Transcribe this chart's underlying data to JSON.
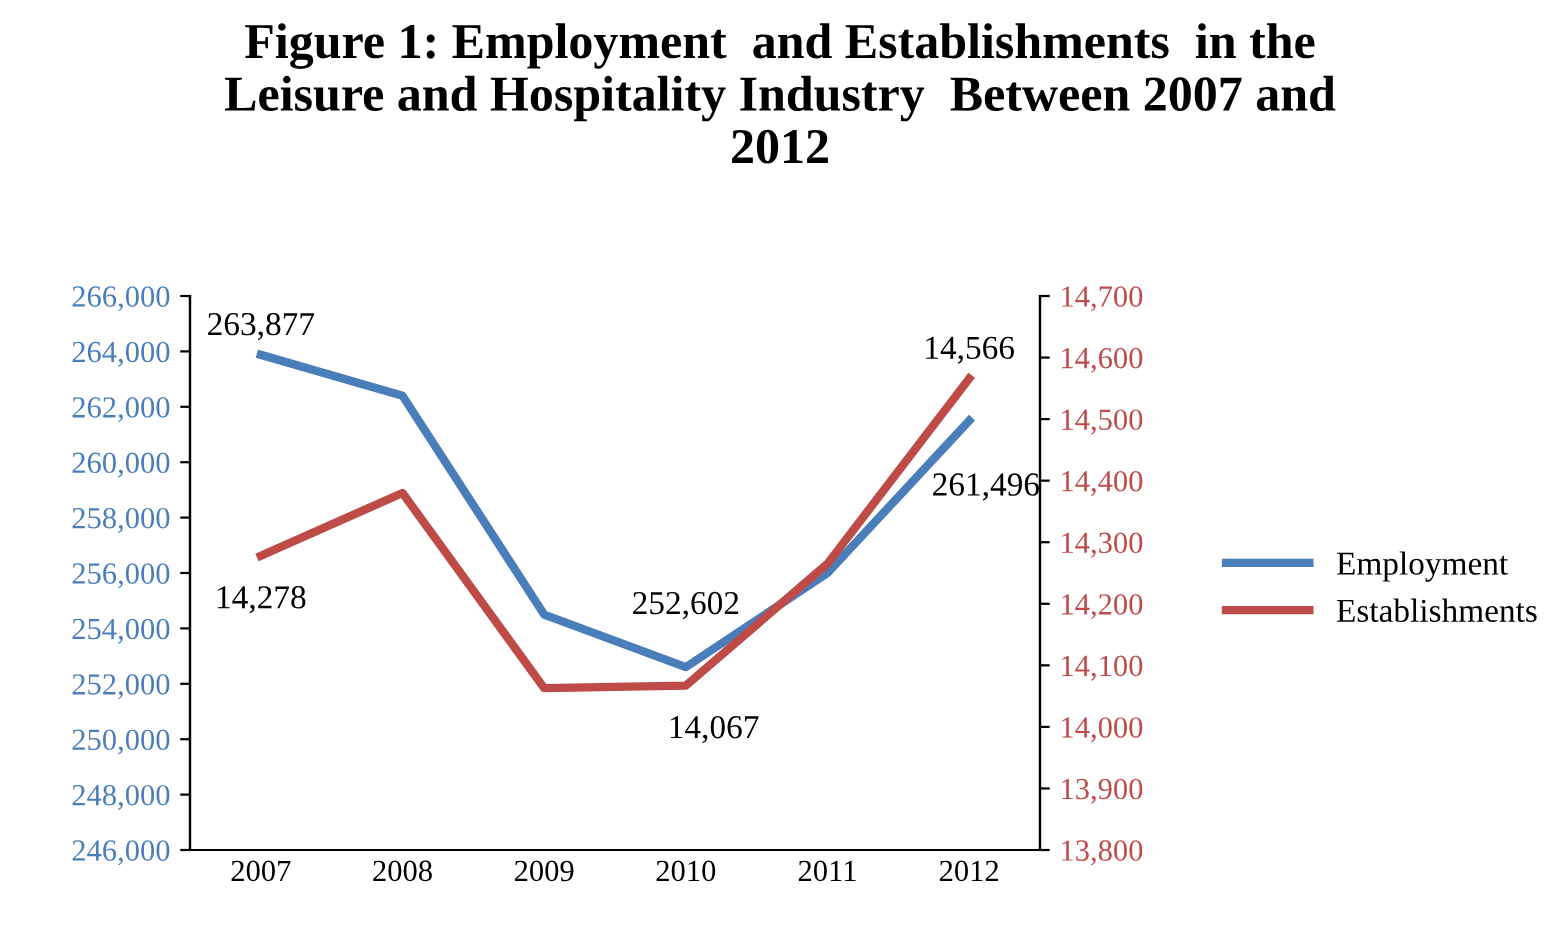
{
  "chart_data": {
    "type": "line",
    "title": "Figure 1: Employment  and Establishments  in the Leisure and Hospitality Industry  Between 2007 and 2012",
    "categories": [
      "2007",
      "2008",
      "2009",
      "2010",
      "2011",
      "2012"
    ],
    "series": [
      {
        "name": "Employment",
        "color": "#4a7ebb",
        "values": [
          263877,
          262400,
          254500,
          252602,
          256000,
          261496
        ],
        "value_labels": [
          "263,877",
          null,
          null,
          "252,602",
          null,
          "261,496"
        ]
      },
      {
        "name": "Establishments",
        "color": "#be4b48",
        "axis": "y2",
        "values": [
          14278,
          14380,
          14063,
          14067,
          14265,
          14566
        ],
        "value_labels": [
          "14,278",
          null,
          null,
          "14,067",
          null,
          "14,566"
        ]
      }
    ],
    "ylim": [
      246000,
      266000
    ],
    "yticks": [
      {
        "value": 246000,
        "label": "246,000"
      },
      {
        "value": 248000,
        "label": "248,000"
      },
      {
        "value": 250000,
        "label": "250,000"
      },
      {
        "value": 252000,
        "label": "252,000"
      },
      {
        "value": 254000,
        "label": "254,000"
      },
      {
        "value": 256000,
        "label": "256,000"
      },
      {
        "value": 258000,
        "label": "258,000"
      },
      {
        "value": 260000,
        "label": "260,000"
      },
      {
        "value": 262000,
        "label": "262,000"
      },
      {
        "value": 264000,
        "label": "264,000"
      },
      {
        "value": 266000,
        "label": "266,000"
      }
    ],
    "y2lim": [
      13800,
      14700
    ],
    "y2ticks": [
      {
        "value": 13800,
        "label": "13,800"
      },
      {
        "value": 13900,
        "label": "13,900"
      },
      {
        "value": 14000,
        "label": "14,000"
      },
      {
        "value": 14100,
        "label": "14,100"
      },
      {
        "value": 14200,
        "label": "14,200"
      },
      {
        "value": 14300,
        "label": "14,300"
      },
      {
        "value": 14400,
        "label": "14,400"
      },
      {
        "value": 14500,
        "label": "14,500"
      },
      {
        "value": 14600,
        "label": "14,600"
      },
      {
        "value": 14700,
        "label": "14,700"
      }
    ],
    "grid": false,
    "legend": "right",
    "marker": "none",
    "line_style": "solid"
  }
}
